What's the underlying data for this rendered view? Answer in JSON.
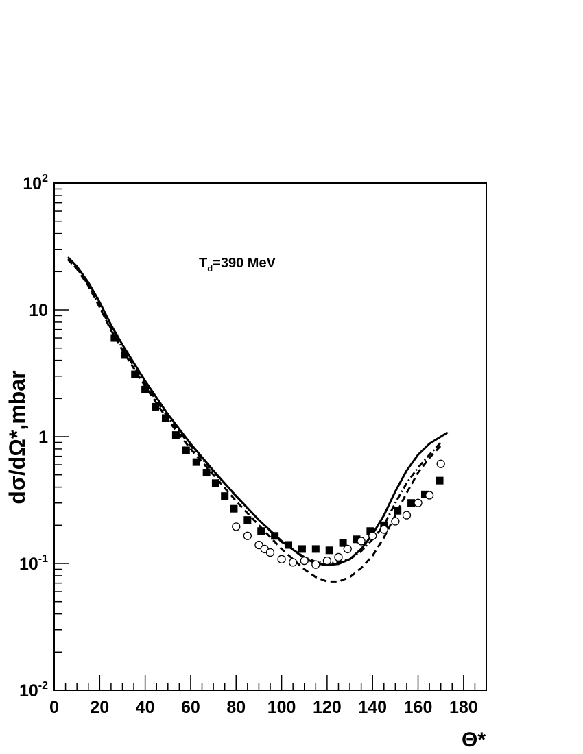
{
  "chart_data": {
    "type": "scatter",
    "xlabel": "Θ*",
    "ylabel": "dσ/dΩ*,mbar",
    "annotation": {
      "main": "T",
      "subscript": "d",
      "rest": "=390 MeV"
    },
    "xlim": [
      0,
      190
    ],
    "ylim": [
      0.01,
      100
    ],
    "yscale": "log",
    "grid": false,
    "legend": "none",
    "x_ticks": [
      "0",
      "20",
      "40",
      "60",
      "80",
      "100",
      "120",
      "140",
      "160",
      "180"
    ],
    "y_ticks": [
      {
        "base": "10",
        "exp": "-2"
      },
      {
        "base": "10",
        "exp": "-1"
      },
      {
        "base": "1",
        "exp": ""
      },
      {
        "base": "10",
        "exp": ""
      },
      {
        "base": "10",
        "exp": "2"
      }
    ],
    "series": [
      {
        "marker": "filled-square",
        "x": [
          26.5,
          31,
          35.5,
          40,
          44.5,
          49,
          53.5,
          58,
          62.5,
          67,
          71,
          75,
          79,
          85,
          91,
          97,
          103,
          109,
          115,
          121,
          127,
          133,
          139,
          145,
          151,
          157,
          163,
          169.5
        ],
        "y": [
          6.0,
          4.4,
          3.1,
          2.35,
          1.72,
          1.4,
          1.03,
          0.78,
          0.63,
          0.52,
          0.43,
          0.34,
          0.27,
          0.22,
          0.18,
          0.165,
          0.14,
          0.13,
          0.13,
          0.127,
          0.145,
          0.155,
          0.18,
          0.2,
          0.26,
          0.3,
          0.35,
          0.45
        ]
      },
      {
        "marker": "open-circle",
        "x": [
          80,
          85,
          90,
          92.5,
          95,
          100,
          105,
          110,
          115,
          120,
          125,
          129,
          135,
          140,
          145,
          150,
          155,
          160,
          165,
          170
        ],
        "y": [
          0.195,
          0.165,
          0.14,
          0.13,
          0.122,
          0.108,
          0.102,
          0.105,
          0.098,
          0.105,
          0.112,
          0.13,
          0.15,
          0.165,
          0.185,
          0.215,
          0.24,
          0.3,
          0.345,
          0.61
        ]
      },
      {
        "line": "solid",
        "x": [
          6,
          10,
          15,
          20,
          25,
          30,
          40,
          50,
          60,
          70,
          80,
          90,
          100,
          110,
          115,
          120,
          125,
          130,
          135,
          140,
          145,
          150,
          155,
          160,
          165,
          170,
          173
        ],
        "y": [
          26,
          22,
          16.5,
          11.5,
          7.6,
          5.3,
          2.75,
          1.5,
          0.88,
          0.54,
          0.34,
          0.22,
          0.15,
          0.11,
          0.1,
          0.097,
          0.099,
          0.108,
          0.13,
          0.17,
          0.24,
          0.37,
          0.54,
          0.72,
          0.88,
          1.0,
          1.08
        ]
      },
      {
        "line": "dashed",
        "x": [
          6,
          10,
          15,
          20,
          25,
          30,
          40,
          50,
          60,
          70,
          80,
          90,
          100,
          110,
          115,
          120,
          125,
          130,
          135,
          140,
          145,
          150,
          155,
          160,
          165,
          170
        ],
        "y": [
          25,
          21,
          15.5,
          10.5,
          6.9,
          4.8,
          2.5,
          1.35,
          0.8,
          0.5,
          0.31,
          0.2,
          0.13,
          0.09,
          0.078,
          0.072,
          0.072,
          0.078,
          0.092,
          0.115,
          0.16,
          0.24,
          0.36,
          0.52,
          0.68,
          0.85
        ]
      },
      {
        "line": "dash-dot",
        "x": [
          6,
          10,
          15,
          20,
          25,
          30,
          40,
          50,
          60,
          70,
          80,
          90,
          100,
          110,
          115,
          120,
          125,
          130,
          135,
          140,
          145,
          150,
          155,
          160,
          165,
          170
        ],
        "y": [
          25,
          21.3,
          15.8,
          10.8,
          7.1,
          5.0,
          2.6,
          1.42,
          0.85,
          0.53,
          0.34,
          0.22,
          0.148,
          0.112,
          0.103,
          0.1,
          0.102,
          0.108,
          0.125,
          0.155,
          0.2,
          0.3,
          0.43,
          0.57,
          0.72,
          0.9
        ]
      }
    ]
  }
}
